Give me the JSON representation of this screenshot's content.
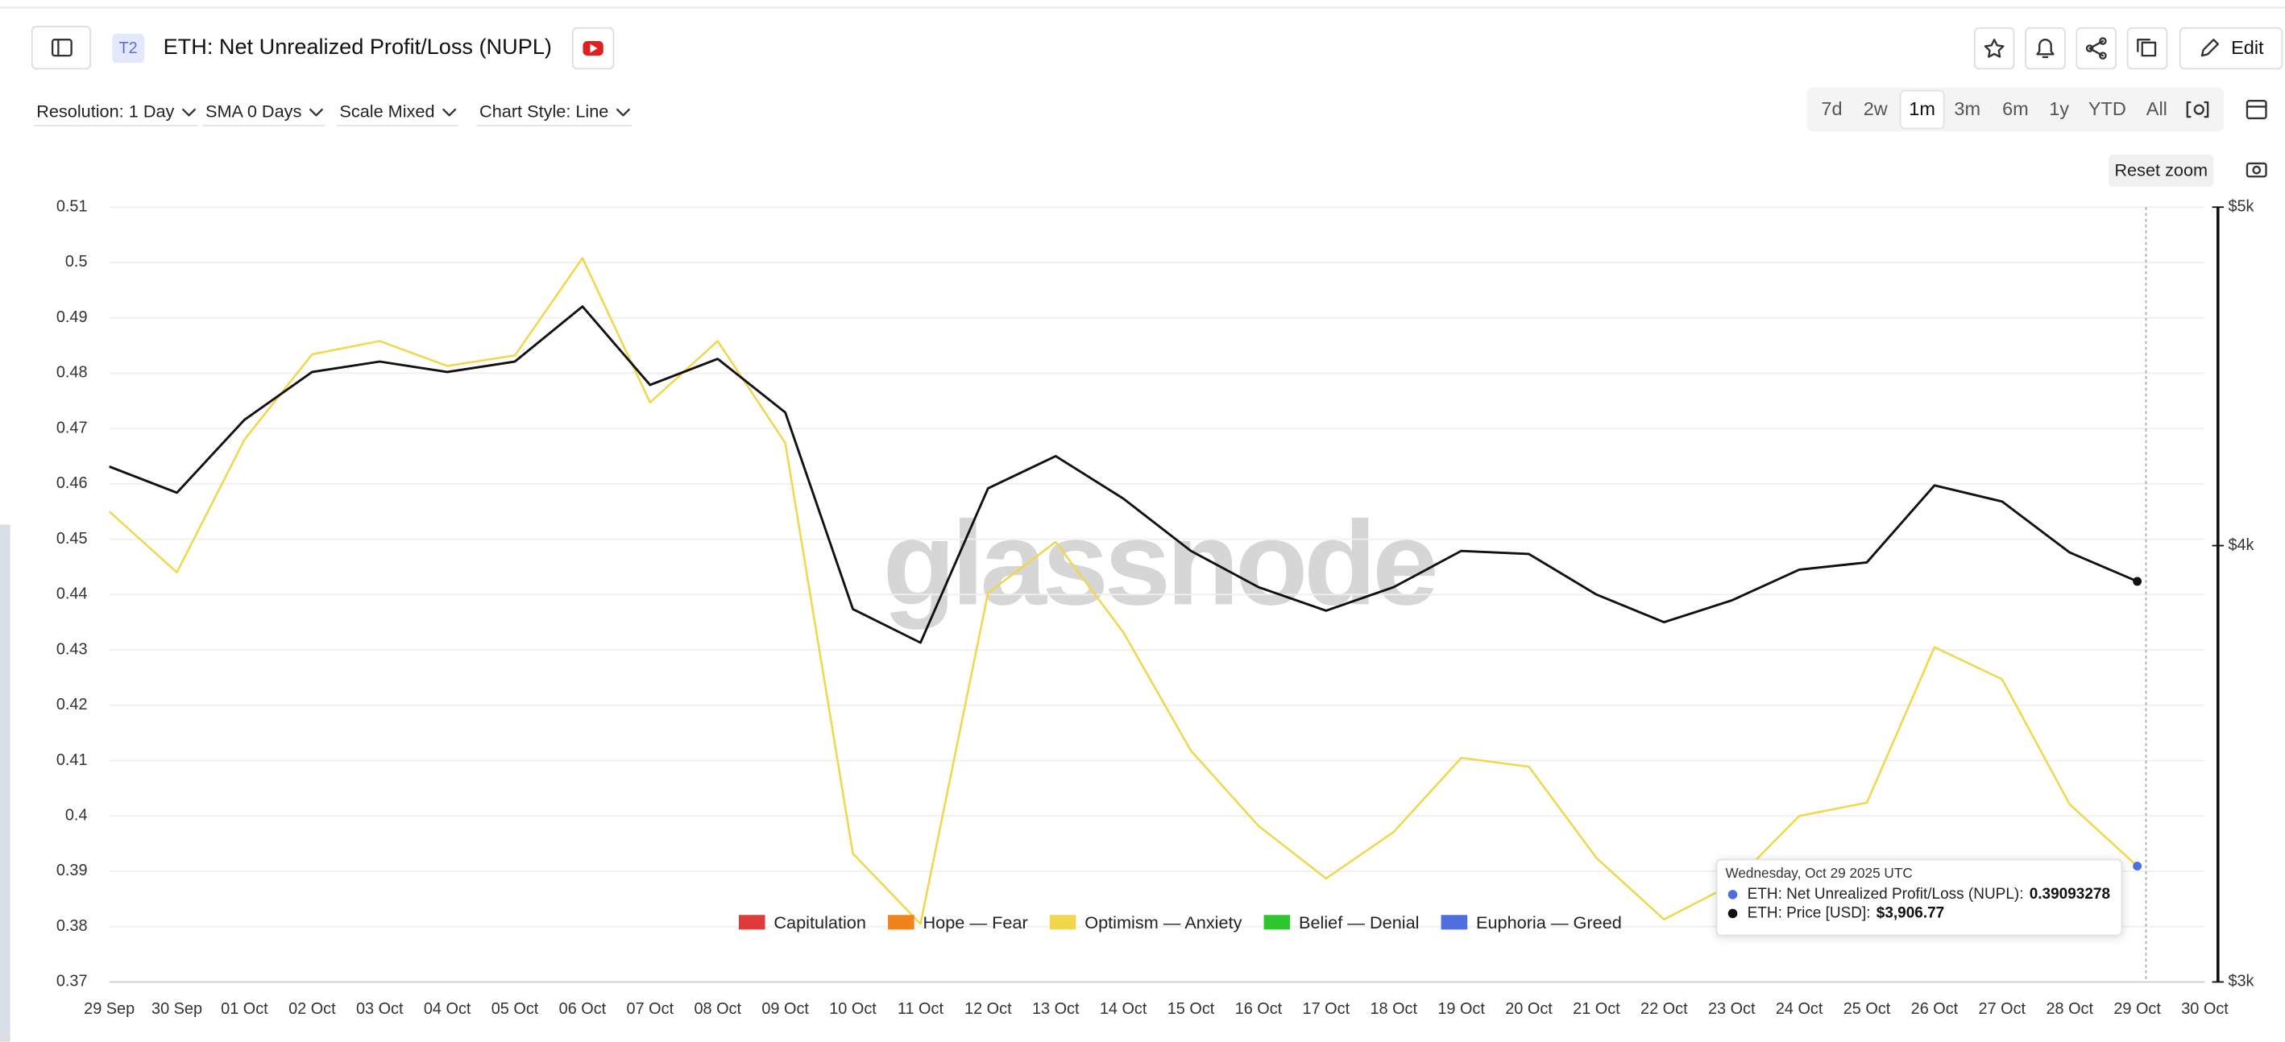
{
  "header": {
    "badge": "T2",
    "title": "ETH: Net Unrealized Profit/Loss (NUPL)",
    "edit": "Edit"
  },
  "toolbar": {
    "controls": [
      "Resolution: 1 Day",
      "SMA 0 Days",
      "Scale Mixed",
      "Chart Style: Line"
    ],
    "ranges": [
      "7d",
      "2w",
      "1m",
      "3m",
      "6m",
      "1y",
      "YTD",
      "All"
    ],
    "reset_zoom": "Reset zoom"
  },
  "chart_data": {
    "type": "line",
    "watermark": "glassnode",
    "categories": [
      "29 Sep",
      "30 Sep",
      "01 Oct",
      "02 Oct",
      "03 Oct",
      "04 Oct",
      "05 Oct",
      "06 Oct",
      "07 Oct",
      "08 Oct",
      "09 Oct",
      "10 Oct",
      "11 Oct",
      "12 Oct",
      "13 Oct",
      "14 Oct",
      "15 Oct",
      "16 Oct",
      "17 Oct",
      "18 Oct",
      "19 Oct",
      "20 Oct",
      "21 Oct",
      "22 Oct",
      "23 Oct",
      "24 Oct",
      "25 Oct",
      "26 Oct",
      "27 Oct",
      "28 Oct",
      "29 Oct",
      "30 Oct"
    ],
    "series": [
      {
        "color": "#f2d64b",
        "marker_color": "#4f6fe0",
        "values": [
          0.455,
          0.444,
          0.468,
          0.4834,
          0.4858,
          0.4813,
          0.4832,
          0.5008,
          0.4747,
          0.4858,
          0.4674,
          0.3932,
          0.3805,
          0.4403,
          0.4495,
          0.4332,
          0.4118,
          0.3982,
          0.3887,
          0.3971,
          0.4105,
          0.4089,
          0.3924,
          0.3813,
          0.3876,
          0.4,
          0.4024,
          0.4305,
          0.4247,
          0.4021,
          0.39093278,
          null
        ]
      },
      {
        "color": "#111111",
        "axis": "y2",
        "values": [
          4214,
          4142,
          4346,
          4485,
          4516,
          4485,
          4516,
          4683,
          4447,
          4524,
          4367,
          3836,
          3752,
          4154,
          4243,
          4126,
          3986,
          3892,
          3832,
          3892,
          3986,
          3978,
          3873,
          3803,
          3858,
          3937,
          3956,
          4162,
          4118,
          3982,
          3906.77,
          null
        ],
        "value_labels": [
          null,
          null,
          null,
          null,
          null,
          null,
          null,
          null,
          null,
          null,
          null,
          null,
          null,
          null,
          null,
          null,
          null,
          null,
          null,
          null,
          null,
          null,
          null,
          null,
          null,
          null,
          null,
          null,
          null,
          null,
          "$3,906.77",
          null
        ]
      }
    ],
    "ylim": [
      0.37,
      0.51
    ],
    "yticks": [
      0.37,
      0.38,
      0.39,
      0.4,
      0.41,
      0.42,
      0.43,
      0.44,
      0.45,
      0.46,
      0.47,
      0.48,
      0.49,
      0.5,
      0.51
    ],
    "y2lim": [
      3000,
      5000
    ],
    "y2ticks": [
      {
        "value": 3000,
        "label": "$3k"
      },
      {
        "value": 4000,
        "label": "$4k"
      },
      {
        "value": 5000,
        "label": "$5k"
      }
    ],
    "y2log": true,
    "grid": true,
    "legend": [
      {
        "name": "Capitulation",
        "color": "#e03b3b"
      },
      {
        "name": "Hope — Fear",
        "color": "#f0841c"
      },
      {
        "name": "Optimism — Anxiety",
        "color": "#f2d64b"
      },
      {
        "name": "Belief — Denial",
        "color": "#2ec62e"
      },
      {
        "name": "Euphoria — Greed",
        "color": "#4f6fe0"
      }
    ],
    "tooltip": {
      "date": "Wednesday, Oct 29 2025 UTC",
      "items": [
        "ETH: Net Unrealized Profit/Loss (NUPL):",
        "ETH: Price [USD]:"
      ]
    }
  }
}
